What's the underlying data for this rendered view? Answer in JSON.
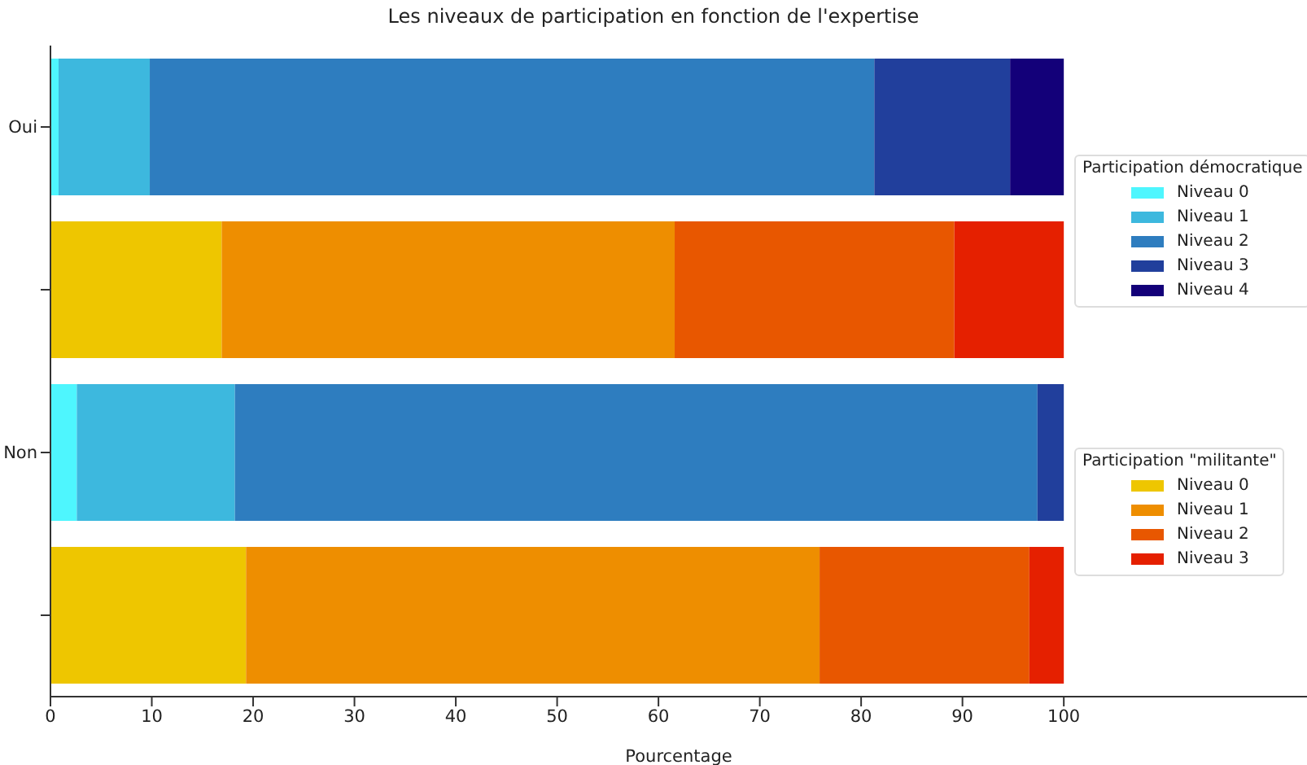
{
  "chart_data": {
    "type": "bar",
    "orientation": "horizontal",
    "stacked": true,
    "title": "Les niveaux de participation en fonction de l'expertise",
    "xlabel": "Pourcentage",
    "legend_title": [
      "Participation démocratique",
      "Participation \"militante\""
    ],
    "categories": [
      "Oui",
      null,
      "Non",
      null
    ],
    "xlim": [
      0,
      124
    ],
    "xticks": [
      0,
      10,
      20,
      30,
      40,
      50,
      60,
      70,
      80,
      90,
      100
    ],
    "grid": false,
    "legend": "right",
    "series": [
      {
        "name": "Niveau 0",
        "color": "#4ef6fe",
        "values": [
          0.8,
          null,
          2.6,
          null
        ]
      },
      {
        "name": "Niveau 1",
        "color": "#3db8de",
        "values": [
          9.0,
          null,
          15.6,
          null
        ]
      },
      {
        "name": "Niveau 2",
        "color": "#2e7dbf",
        "values": [
          71.5,
          null,
          79.2,
          null
        ]
      },
      {
        "name": "Niveau 3",
        "color": "#213f9c",
        "values": [
          13.4,
          null,
          2.6,
          null
        ]
      },
      {
        "name": "Niveau 4",
        "color": "#130079",
        "values": [
          5.3,
          null,
          0,
          null
        ]
      },
      {
        "name": "Niveau 0",
        "color": "#eec600",
        "values": [
          null,
          16.9,
          null,
          19.3
        ]
      },
      {
        "name": "Niveau 1",
        "color": "#ee8e00",
        "values": [
          null,
          44.7,
          null,
          56.6
        ]
      },
      {
        "name": "Niveau 2",
        "color": "#e85700",
        "values": [
          null,
          27.6,
          null,
          20.7
        ]
      },
      {
        "name": "Niveau 3",
        "color": "#e52000",
        "values": [
          null,
          10.8,
          null,
          3.4
        ]
      }
    ]
  }
}
